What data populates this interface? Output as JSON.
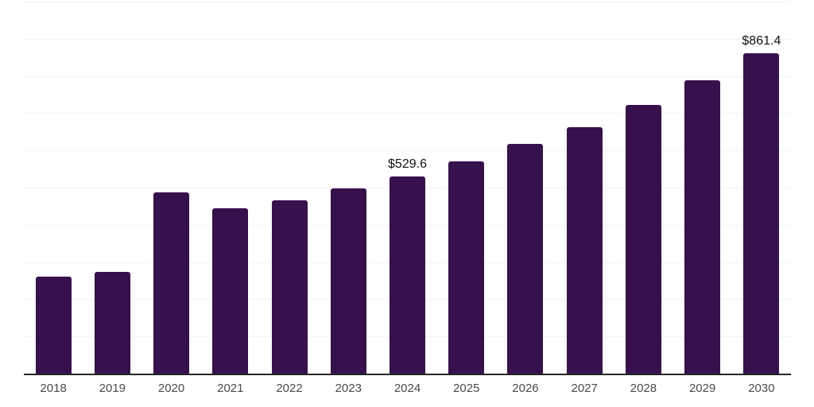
{
  "chart_data": {
    "type": "bar",
    "categories": [
      "2018",
      "2019",
      "2020",
      "2021",
      "2022",
      "2023",
      "2024",
      "2025",
      "2026",
      "2027",
      "2028",
      "2029",
      "2030"
    ],
    "values": [
      260,
      274,
      487,
      444,
      466,
      498,
      529.6,
      570,
      618,
      663,
      723,
      789,
      861.4
    ],
    "data_labels": [
      {
        "category": "2024",
        "text": "$529.6"
      },
      {
        "category": "2030",
        "text": "$861.4"
      }
    ],
    "title": "",
    "xlabel": "",
    "ylabel": "",
    "ylim": [
      0,
      1000
    ],
    "gridline_step": 100,
    "grid": true,
    "legend": false,
    "bar_color": "#36114D",
    "axis_line_color": "#262626",
    "gridline_color": "#f3f3f3",
    "tick_label_color": "#4a4a4a",
    "value_label_color": "#111111"
  }
}
